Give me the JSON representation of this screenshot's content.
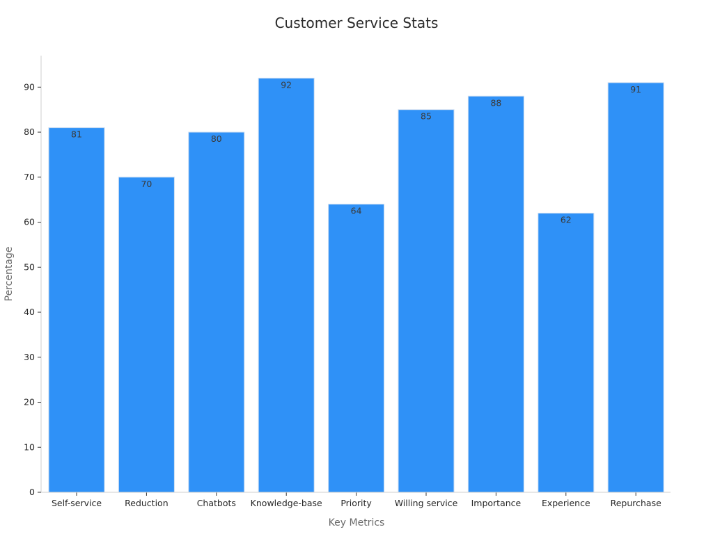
{
  "chart_data": {
    "type": "bar",
    "title": "Customer Service Stats",
    "xlabel": "Key Metrics",
    "ylabel": "Percentage",
    "categories": [
      "Self-service",
      "Reduction",
      "Chatbots",
      "Knowledge-base",
      "Priority",
      "Willing service",
      "Importance",
      "Experience",
      "Repurchase"
    ],
    "values": [
      81,
      70,
      80,
      92,
      64,
      85,
      88,
      62,
      91
    ],
    "ylim": [
      0,
      97
    ],
    "yticks": [
      0,
      10,
      20,
      30,
      40,
      50,
      60,
      70,
      80,
      90
    ],
    "grid": false,
    "legend": "none",
    "data_labels": "inside-top",
    "colors": {
      "bar": "#2f91f7",
      "bar_edge": "#c9dcf2"
    }
  }
}
